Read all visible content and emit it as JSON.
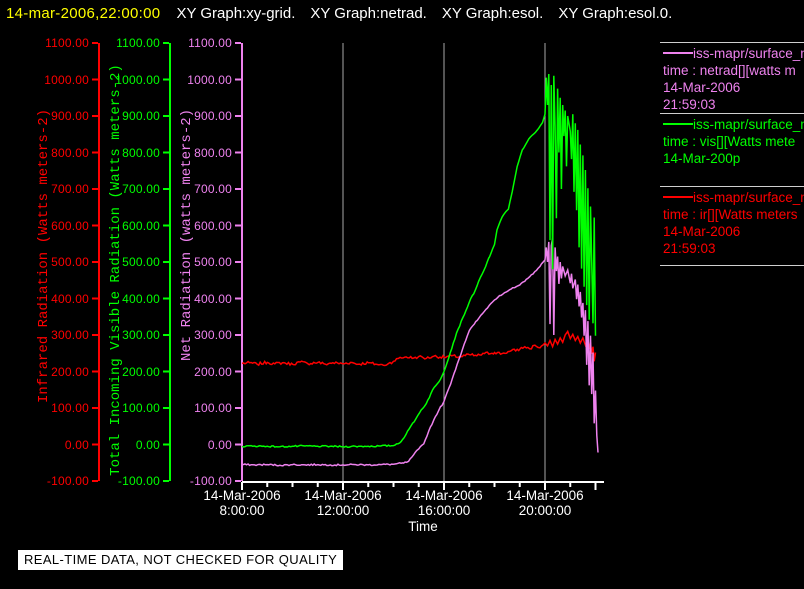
{
  "titlebar": {
    "timestamp": "14-mar-2006,22:00:00",
    "windows": [
      "XY Graph:xy-grid.",
      "XY Graph:netrad.",
      "XY Graph:esol.",
      "XY Graph:esol.0."
    ]
  },
  "banner": {
    "text": "REAL-TIME DATA, NOT CHECKED FOR QUALITY"
  },
  "colors": {
    "background": "#000000",
    "infrared": "#ff0000",
    "visible": "#00ff00",
    "net": "#ee82ee",
    "timestamp": "#ffff00",
    "grid": "#a8a8a8",
    "x_axis": "#ffffff",
    "separator": "#cfcfcf"
  },
  "legend": {
    "entries": [
      {
        "color_key": "net",
        "lines": [
          "iss-mapr/surface_m",
          "time : netrad[][watts m",
          "14-Mar-2006",
          "21:59:03"
        ]
      },
      {
        "color_key": "visible",
        "lines": [
          "iss-mapr/surface_m",
          "time : vis[][Watts mete",
          "14-Mar-200p"
        ]
      },
      {
        "color_key": "infrared",
        "lines": [
          "iss-mapr/surface_m",
          "time : ir[][Watts meters",
          "14-Mar-2006",
          "21:59:03"
        ]
      }
    ]
  },
  "chart_data": {
    "type": "line",
    "x_axis": {
      "label": "Time",
      "range_hours": [
        8,
        22.35
      ],
      "minor_tick_every_hours": 1,
      "major_tick_hours": [
        8,
        12,
        16,
        20,
        22
      ],
      "gridline_hours": [
        12,
        16,
        20
      ],
      "major_ticks": [
        {
          "hour": 8,
          "date": "14-Mar-2006",
          "time": "8:00:00"
        },
        {
          "hour": 12,
          "date": "14-Mar-2006",
          "time": "12:00:00"
        },
        {
          "hour": 16,
          "date": "14-Mar-2006",
          "time": "16:00:00"
        },
        {
          "hour": 20,
          "date": "14-Mar-2006",
          "time": "20:00:00"
        }
      ]
    },
    "y_axes": [
      {
        "id": "infrared",
        "title": "Infrared Radiation (Watts meters-2)",
        "color": "#ff0000",
        "min": -100,
        "max": 1100,
        "tick_step": 100
      },
      {
        "id": "visible",
        "title": "Total Incoming Visible Radiation (Watts meters-2)",
        "color": "#00ff00",
        "min": -100,
        "max": 1100,
        "tick_step": 100
      },
      {
        "id": "net",
        "title": "Net Radiation (watts meters-2)",
        "color": "#ee82ee",
        "min": -100,
        "max": 1100,
        "tick_step": 100
      }
    ],
    "series": [
      {
        "name": "infrared_radiation",
        "color": "#ff0000",
        "points": [
          [
            8.0,
            222
          ],
          [
            8.3,
            224
          ],
          [
            8.6,
            220
          ],
          [
            9.0,
            225
          ],
          [
            9.3,
            221
          ],
          [
            9.6,
            224
          ],
          [
            10.0,
            220
          ],
          [
            10.3,
            226
          ],
          [
            10.6,
            222
          ],
          [
            11.0,
            225
          ],
          [
            11.3,
            220
          ],
          [
            11.6,
            224
          ],
          [
            12.0,
            221
          ],
          [
            12.3,
            225
          ],
          [
            12.6,
            220
          ],
          [
            13.0,
            224
          ],
          [
            13.3,
            220
          ],
          [
            13.6,
            217
          ],
          [
            13.8,
            222
          ],
          [
            14.0,
            228
          ],
          [
            14.2,
            236
          ],
          [
            14.5,
            240
          ],
          [
            14.8,
            237
          ],
          [
            15.0,
            241
          ],
          [
            15.3,
            236
          ],
          [
            15.6,
            242
          ],
          [
            16.0,
            239
          ],
          [
            16.3,
            243
          ],
          [
            16.6,
            240
          ],
          [
            17.0,
            246
          ],
          [
            17.3,
            243
          ],
          [
            17.6,
            249
          ],
          [
            18.0,
            252
          ],
          [
            18.3,
            249
          ],
          [
            18.6,
            255
          ],
          [
            19.0,
            261
          ],
          [
            19.2,
            268
          ],
          [
            19.4,
            262
          ],
          [
            19.6,
            272
          ],
          [
            19.8,
            265
          ],
          [
            20.0,
            278
          ],
          [
            20.1,
            270
          ],
          [
            20.2,
            285
          ],
          [
            20.3,
            268
          ],
          [
            20.4,
            288
          ],
          [
            20.5,
            275
          ],
          [
            20.6,
            292
          ],
          [
            20.7,
            280
          ],
          [
            20.8,
            300
          ],
          [
            20.9,
            310
          ],
          [
            21.0,
            290
          ],
          [
            21.1,
            302
          ],
          [
            21.2,
            285
          ],
          [
            21.3,
            296
          ],
          [
            21.4,
            278
          ],
          [
            21.5,
            292
          ],
          [
            21.6,
            272
          ],
          [
            21.7,
            288
          ],
          [
            21.75,
            262
          ],
          [
            21.8,
            280
          ],
          [
            21.85,
            248
          ],
          [
            21.9,
            268
          ],
          [
            21.95,
            228
          ],
          [
            22.0,
            252
          ]
        ]
      },
      {
        "name": "net_radiation",
        "color": "#ee82ee",
        "points": [
          [
            8.0,
            -55
          ],
          [
            8.5,
            -56
          ],
          [
            9.0,
            -55
          ],
          [
            9.5,
            -57
          ],
          [
            10.0,
            -55
          ],
          [
            10.5,
            -56
          ],
          [
            11.0,
            -55
          ],
          [
            11.5,
            -56
          ],
          [
            12.0,
            -56
          ],
          [
            12.5,
            -55
          ],
          [
            13.0,
            -56
          ],
          [
            13.5,
            -55
          ],
          [
            14.0,
            -54
          ],
          [
            14.4,
            -51
          ],
          [
            14.6,
            -46
          ],
          [
            14.8,
            -28
          ],
          [
            15.0,
            -12
          ],
          [
            15.2,
            2
          ],
          [
            15.4,
            38
          ],
          [
            15.6,
            68
          ],
          [
            15.8,
            95
          ],
          [
            16.0,
            118
          ],
          [
            16.2,
            155
          ],
          [
            16.4,
            195
          ],
          [
            16.6,
            235
          ],
          [
            16.8,
            275
          ],
          [
            17.0,
            312
          ],
          [
            17.2,
            330
          ],
          [
            17.4,
            348
          ],
          [
            17.6,
            365
          ],
          [
            17.8,
            382
          ],
          [
            18.0,
            396
          ],
          [
            18.2,
            408
          ],
          [
            18.4,
            416
          ],
          [
            18.6,
            424
          ],
          [
            18.8,
            430
          ],
          [
            19.0,
            437
          ],
          [
            19.2,
            447
          ],
          [
            19.4,
            460
          ],
          [
            19.6,
            474
          ],
          [
            19.8,
            488
          ],
          [
            20.0,
            506
          ],
          [
            20.05,
            540
          ],
          [
            20.1,
            500
          ],
          [
            20.15,
            555
          ],
          [
            20.2,
            330
          ],
          [
            20.25,
            545
          ],
          [
            20.3,
            565
          ],
          [
            20.35,
            300
          ],
          [
            20.4,
            540
          ],
          [
            20.45,
            475
          ],
          [
            20.5,
            515
          ],
          [
            20.55,
            440
          ],
          [
            20.6,
            500
          ],
          [
            20.65,
            455
          ],
          [
            20.7,
            488
          ],
          [
            20.8,
            462
          ],
          [
            20.9,
            478
          ],
          [
            21.0,
            442
          ],
          [
            21.05,
            468
          ],
          [
            21.1,
            428
          ],
          [
            21.2,
            452
          ],
          [
            21.25,
            398
          ],
          [
            21.3,
            438
          ],
          [
            21.35,
            378
          ],
          [
            21.4,
            418
          ],
          [
            21.45,
            348
          ],
          [
            21.5,
            388
          ],
          [
            21.55,
            298
          ],
          [
            21.6,
            368
          ],
          [
            21.65,
            218
          ],
          [
            21.7,
            338
          ],
          [
            21.75,
            162
          ],
          [
            21.8,
            298
          ],
          [
            21.85,
            138
          ],
          [
            21.9,
            252
          ],
          [
            21.95,
            58
          ],
          [
            22.0,
            148
          ],
          [
            22.05,
            25
          ],
          [
            22.1,
            -22
          ]
        ]
      },
      {
        "name": "visible_radiation",
        "color": "#00ff00",
        "points": [
          [
            8.0,
            -5
          ],
          [
            8.5,
            -4
          ],
          [
            9.0,
            -5
          ],
          [
            9.5,
            -6
          ],
          [
            10.0,
            -5
          ],
          [
            10.5,
            -4
          ],
          [
            11.0,
            -5
          ],
          [
            11.5,
            -5
          ],
          [
            12.0,
            -6
          ],
          [
            12.5,
            -5
          ],
          [
            13.0,
            -5
          ],
          [
            13.5,
            -4
          ],
          [
            14.0,
            -3
          ],
          [
            14.3,
            8
          ],
          [
            14.5,
            28
          ],
          [
            14.7,
            52
          ],
          [
            14.9,
            72
          ],
          [
            15.1,
            95
          ],
          [
            15.3,
            112
          ],
          [
            15.55,
            150
          ],
          [
            15.8,
            172
          ],
          [
            16.0,
            200
          ],
          [
            16.25,
            252
          ],
          [
            16.5,
            306
          ],
          [
            16.75,
            348
          ],
          [
            17.0,
            390
          ],
          [
            17.25,
            425
          ],
          [
            17.45,
            459
          ],
          [
            17.65,
            488
          ],
          [
            17.8,
            514
          ],
          [
            18.0,
            548
          ],
          [
            18.1,
            588
          ],
          [
            18.3,
            623
          ],
          [
            18.45,
            638
          ],
          [
            18.55,
            645
          ],
          [
            18.7,
            692
          ],
          [
            18.9,
            762
          ],
          [
            19.1,
            807
          ],
          [
            19.3,
            830
          ],
          [
            19.5,
            848
          ],
          [
            19.7,
            862
          ],
          [
            19.9,
            882
          ],
          [
            20.0,
            905
          ],
          [
            20.05,
            1005
          ],
          [
            20.1,
            930
          ],
          [
            20.15,
            1015
          ],
          [
            20.2,
            560
          ],
          [
            20.25,
            985
          ],
          [
            20.3,
            480
          ],
          [
            20.35,
            1010
          ],
          [
            20.4,
            870
          ],
          [
            20.45,
            620
          ],
          [
            20.5,
            975
          ],
          [
            20.55,
            800
          ],
          [
            20.6,
            950
          ],
          [
            20.65,
            700
          ],
          [
            20.7,
            930
          ],
          [
            20.75,
            845
          ],
          [
            20.8,
            915
          ],
          [
            20.85,
            762
          ],
          [
            20.9,
            900
          ],
          [
            21.0,
            858
          ],
          [
            21.05,
            782
          ],
          [
            21.1,
            905
          ],
          [
            21.15,
            692
          ],
          [
            21.2,
            880
          ],
          [
            21.25,
            642
          ],
          [
            21.3,
            862
          ],
          [
            21.35,
            540
          ],
          [
            21.4,
            822
          ],
          [
            21.45,
            482
          ],
          [
            21.5,
            792
          ],
          [
            21.55,
            432
          ],
          [
            21.6,
            752
          ],
          [
            21.65,
            382
          ],
          [
            21.7,
            702
          ],
          [
            21.75,
            342
          ],
          [
            21.8,
            652
          ],
          [
            21.85,
            502
          ],
          [
            21.9,
            332
          ],
          [
            21.95,
            622
          ],
          [
            22.0,
            298
          ]
        ]
      }
    ]
  }
}
